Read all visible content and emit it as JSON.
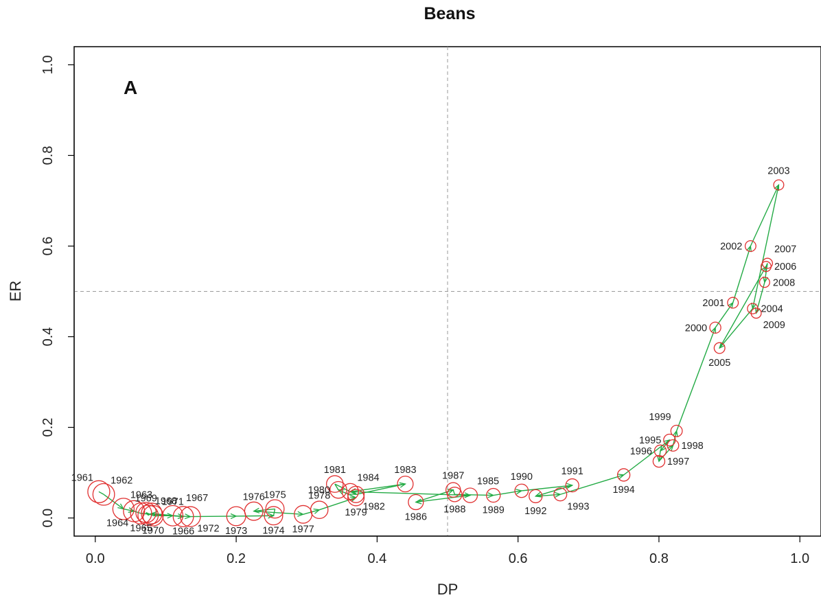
{
  "chart_data": {
    "type": "scatter",
    "title": "Beans",
    "panel_label": "A",
    "xlabel": "DP",
    "ylabel": "ER",
    "xlim": [
      -0.03,
      1.03
    ],
    "ylim": [
      -0.04,
      1.04
    ],
    "xticks": [
      0.0,
      0.2,
      0.4,
      0.6,
      0.8,
      1.0
    ],
    "xtick_labels": [
      "0.0",
      "0.2",
      "0.4",
      "0.6",
      "0.8",
      "1.0"
    ],
    "yticks": [
      0.0,
      0.2,
      0.4,
      0.6,
      0.8,
      1.0
    ],
    "ytick_labels": [
      "0.0",
      "0.2",
      "0.4",
      "0.6",
      "0.8",
      "1.0"
    ],
    "reference_lines": {
      "x": 0.5,
      "y": 0.5,
      "style": "dashed"
    },
    "grid": false,
    "marker_color": "#e03030",
    "path_color": "#22aa44",
    "points": [
      {
        "year": "1961",
        "x": 0.005,
        "y": 0.058,
        "size": 1.0,
        "label_pos": "above-left"
      },
      {
        "year": "1962",
        "x": 0.012,
        "y": 0.052,
        "size": 0.98,
        "label_pos": "above-right"
      },
      {
        "year": "1963",
        "x": 0.04,
        "y": 0.02,
        "size": 0.96,
        "label_pos": "above-right"
      },
      {
        "year": "1964",
        "x": 0.055,
        "y": 0.015,
        "size": 0.95,
        "label_pos": "below-left"
      },
      {
        "year": "1965",
        "x": 0.065,
        "y": 0.01,
        "size": 0.95,
        "label_pos": "below"
      },
      {
        "year": "1966",
        "x": 0.125,
        "y": 0.003,
        "size": 0.9,
        "label_pos": "below"
      },
      {
        "year": "1967",
        "x": 0.08,
        "y": 0.01,
        "size": 0.92,
        "label_pos": "above-far-right"
      },
      {
        "year": "1968",
        "x": 0.075,
        "y": 0.006,
        "size": 0.9,
        "label_pos": "above-right"
      },
      {
        "year": "1969",
        "x": 0.072,
        "y": 0.012,
        "size": 0.9,
        "label_pos": "above"
      },
      {
        "year": "1970",
        "x": 0.082,
        "y": 0.005,
        "size": 0.9,
        "label_pos": "below"
      },
      {
        "year": "1971",
        "x": 0.11,
        "y": 0.005,
        "size": 0.9,
        "label_pos": "above"
      },
      {
        "year": "1972",
        "x": 0.135,
        "y": 0.003,
        "size": 0.88,
        "label_pos": "below-right"
      },
      {
        "year": "1973",
        "x": 0.2,
        "y": 0.004,
        "size": 0.82,
        "label_pos": "below"
      },
      {
        "year": "1974",
        "x": 0.253,
        "y": 0.005,
        "size": 0.78,
        "label_pos": "below"
      },
      {
        "year": "1975",
        "x": 0.255,
        "y": 0.02,
        "size": 0.78,
        "label_pos": "above"
      },
      {
        "year": "1976",
        "x": 0.225,
        "y": 0.015,
        "size": 0.78,
        "label_pos": "above"
      },
      {
        "year": "1977",
        "x": 0.295,
        "y": 0.008,
        "size": 0.74,
        "label_pos": "below"
      },
      {
        "year": "1978",
        "x": 0.318,
        "y": 0.018,
        "size": 0.72,
        "label_pos": "above"
      },
      {
        "year": "1979",
        "x": 0.37,
        "y": 0.045,
        "size": 0.66,
        "label_pos": "below"
      },
      {
        "year": "1980",
        "x": 0.345,
        "y": 0.062,
        "size": 0.68,
        "label_pos": "left"
      },
      {
        "year": "1981",
        "x": 0.34,
        "y": 0.075,
        "size": 0.68,
        "label_pos": "above"
      },
      {
        "year": "1982",
        "x": 0.37,
        "y": 0.052,
        "size": 0.66,
        "label_pos": "below-right"
      },
      {
        "year": "1983",
        "x": 0.44,
        "y": 0.075,
        "size": 0.62,
        "label_pos": "above"
      },
      {
        "year": "1984",
        "x": 0.362,
        "y": 0.058,
        "size": 0.66,
        "label_pos": "above-right"
      },
      {
        "year": "1985",
        "x": 0.532,
        "y": 0.05,
        "size": 0.55,
        "label_pos": "above-right"
      },
      {
        "year": "1986",
        "x": 0.455,
        "y": 0.035,
        "size": 0.58,
        "label_pos": "below"
      },
      {
        "year": "1987",
        "x": 0.508,
        "y": 0.062,
        "size": 0.55,
        "label_pos": "above"
      },
      {
        "year": "1988",
        "x": 0.51,
        "y": 0.052,
        "size": 0.55,
        "label_pos": "below"
      },
      {
        "year": "1989",
        "x": 0.565,
        "y": 0.05,
        "size": 0.5,
        "label_pos": "below"
      },
      {
        "year": "1990",
        "x": 0.605,
        "y": 0.06,
        "size": 0.48,
        "label_pos": "above"
      },
      {
        "year": "1991",
        "x": 0.677,
        "y": 0.072,
        "size": 0.46,
        "label_pos": "above"
      },
      {
        "year": "1992",
        "x": 0.625,
        "y": 0.048,
        "size": 0.46,
        "label_pos": "below"
      },
      {
        "year": "1993",
        "x": 0.66,
        "y": 0.052,
        "size": 0.45,
        "label_pos": "below-right"
      },
      {
        "year": "1994",
        "x": 0.75,
        "y": 0.095,
        "size": 0.42,
        "label_pos": "below"
      },
      {
        "year": "1995",
        "x": 0.815,
        "y": 0.172,
        "size": 0.38,
        "label_pos": "left"
      },
      {
        "year": "1996",
        "x": 0.802,
        "y": 0.148,
        "size": 0.38,
        "label_pos": "left"
      },
      {
        "year": "1997",
        "x": 0.8,
        "y": 0.125,
        "size": 0.38,
        "label_pos": "right"
      },
      {
        "year": "1998",
        "x": 0.82,
        "y": 0.16,
        "size": 0.36,
        "label_pos": "right"
      },
      {
        "year": "1999",
        "x": 0.825,
        "y": 0.192,
        "size": 0.36,
        "label_pos": "above-left"
      },
      {
        "year": "2000",
        "x": 0.88,
        "y": 0.42,
        "size": 0.34,
        "label_pos": "left"
      },
      {
        "year": "2001",
        "x": 0.905,
        "y": 0.475,
        "size": 0.32,
        "label_pos": "left"
      },
      {
        "year": "2002",
        "x": 0.93,
        "y": 0.6,
        "size": 0.32,
        "label_pos": "left"
      },
      {
        "year": "2003",
        "x": 0.97,
        "y": 0.735,
        "size": 0.28,
        "label_pos": "above"
      },
      {
        "year": "2004",
        "x": 0.933,
        "y": 0.462,
        "size": 0.3,
        "label_pos": "right"
      },
      {
        "year": "2005",
        "x": 0.886,
        "y": 0.375,
        "size": 0.32,
        "label_pos": "below"
      },
      {
        "year": "2006",
        "x": 0.952,
        "y": 0.555,
        "size": 0.28,
        "label_pos": "right"
      },
      {
        "year": "2007",
        "x": 0.954,
        "y": 0.562,
        "size": 0.28,
        "label_pos": "above-right"
      },
      {
        "year": "2008",
        "x": 0.95,
        "y": 0.52,
        "size": 0.28,
        "label_pos": "right"
      },
      {
        "year": "2009",
        "x": 0.938,
        "y": 0.452,
        "size": 0.28,
        "label_pos": "below-right"
      }
    ]
  }
}
